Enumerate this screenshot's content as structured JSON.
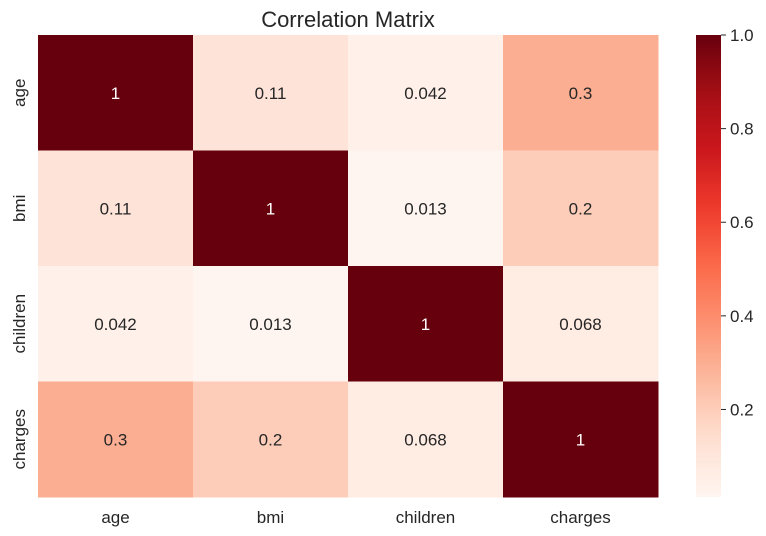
{
  "chart_data": {
    "type": "heatmap",
    "title": "Correlation Matrix",
    "x_categories": [
      "age",
      "bmi",
      "children",
      "charges"
    ],
    "y_categories": [
      "age",
      "bmi",
      "children",
      "charges"
    ],
    "matrix": [
      [
        1.0,
        0.11,
        0.042,
        0.3
      ],
      [
        0.11,
        1.0,
        0.013,
        0.2
      ],
      [
        0.042,
        0.013,
        1.0,
        0.068
      ],
      [
        0.3,
        0.2,
        0.068,
        1.0
      ]
    ],
    "cell_labels": [
      [
        "1",
        "0.11",
        "0.042",
        "0.3"
      ],
      [
        "0.11",
        "1",
        "0.013",
        "0.2"
      ],
      [
        "0.042",
        "0.013",
        "1",
        "0.068"
      ],
      [
        "0.3",
        "0.2",
        "0.068",
        "1"
      ]
    ],
    "colormap": "Reds",
    "colorbar": {
      "vmin": 0.013,
      "vmax": 1.0,
      "ticks": [
        0.2,
        0.4,
        0.6,
        0.8,
        1.0
      ],
      "tick_labels": [
        "0.2",
        "0.4",
        "0.6",
        "0.8",
        "1.0"
      ]
    }
  }
}
